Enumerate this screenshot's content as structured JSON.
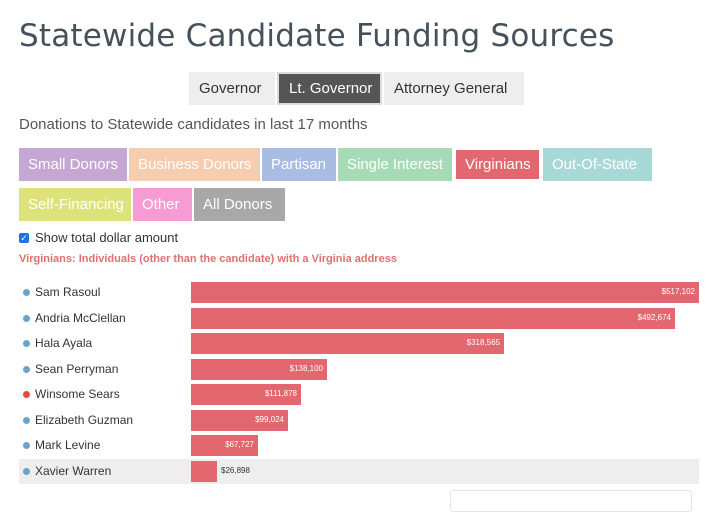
{
  "title": "Statewide Candidate Funding Sources",
  "office_tabs": [
    {
      "label": "Governor",
      "active": false
    },
    {
      "label": "Lt. Governor",
      "active": true
    },
    {
      "label": "Attorney General",
      "active": false
    }
  ],
  "subtitle": "Donations to Statewide candidates in last 17 months",
  "categories": [
    {
      "label": "Small Donors",
      "color": "#c6a6d3",
      "active": false
    },
    {
      "label": "Business Donors",
      "color": "#f7cdb0",
      "active": false
    },
    {
      "label": "Partisan",
      "color": "#a9bde3",
      "active": false
    },
    {
      "label": "Single Interest",
      "color": "#a7dbb7",
      "active": false
    },
    {
      "label": "Virginians",
      "color": "#e3676e",
      "active": true
    },
    {
      "label": "Out-Of-State",
      "color": "#a9d9d6",
      "active": false
    },
    {
      "label": "Self-Financing",
      "color": "#dde27a",
      "active": false
    },
    {
      "label": "Other",
      "color": "#f79bd5",
      "active": false
    },
    {
      "label": "All Donors",
      "color": "#a8a8a8",
      "active": false
    }
  ],
  "show_total": {
    "label": "Show total dollar amount",
    "checked": true
  },
  "category_description": "Virginians: Individuals (other than the candidate) with a Virginia address",
  "chart_data": {
    "type": "bar",
    "orientation": "horizontal",
    "bar_color": "#e3676e",
    "categories": [
      "Sam Rasoul",
      "Andria McClellan",
      "Hala Ayala",
      "Sean Perryman",
      "Winsome Sears",
      "Elizabeth Guzman",
      "Mark Levine",
      "Xavier Warren"
    ],
    "values": [
      517102,
      492674,
      318565,
      138100,
      111878,
      99024,
      67727,
      26898
    ],
    "value_labels": [
      "$517,102",
      "$492,674",
      "$318,565",
      "$138,100",
      "$111,878",
      "$99,024",
      "$67,727",
      "$26,898"
    ],
    "party_colors": [
      "#6ba3c8",
      "#6ba3c8",
      "#6ba3c8",
      "#6ba3c8",
      "#e64a44",
      "#6ba3c8",
      "#6ba3c8",
      "#6ba3c8"
    ],
    "highlighted": "Xavier Warren",
    "xlim": [
      0,
      517102
    ]
  }
}
